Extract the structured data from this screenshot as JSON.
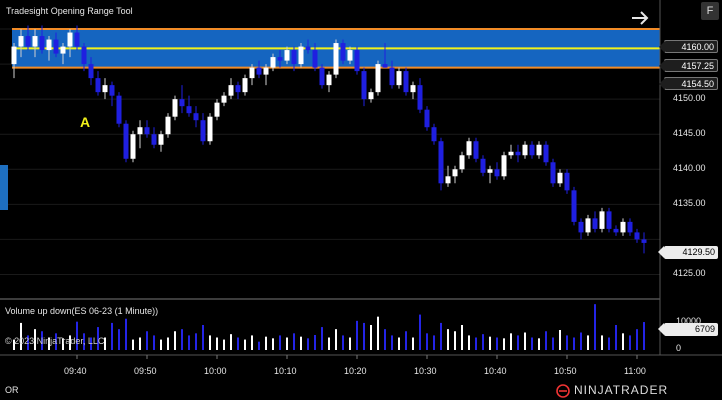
{
  "window": {
    "title": "Tradesight Opening Range Tool",
    "f_button": "F",
    "bottom_left": "OR"
  },
  "annotation": {
    "marker_label": "A"
  },
  "price_panel": {
    "y_ticks": [
      "4150.00",
      "4145.00",
      "4140.00",
      "4135.00",
      "4125.00"
    ],
    "tags": {
      "or_high": "4160.00",
      "or_mid": "4157.25",
      "or_low": "4154.50",
      "last_price": "4129.50"
    }
  },
  "volume_panel": {
    "title": "Volume up down(ES 06-23 (1 Minute))",
    "copyright": "© 2023 NinjaTrader, LLC",
    "y_ticks": [
      "10000",
      "0"
    ],
    "last_volume_tag": "6709"
  },
  "x_axis": {
    "ticks": [
      "09:40",
      "09:50",
      "10:00",
      "10:10",
      "10:20",
      "10:30",
      "10:40",
      "10:50",
      "11:00"
    ]
  },
  "logo": {
    "text": "NINJATRADER"
  },
  "colors": {
    "background": "#000000",
    "up_candle": "#ffffff",
    "down_candle": "#1f1fe0",
    "range_fill": "#1565c0",
    "range_border": "#f28c28",
    "mid_line": "#f2f21a",
    "volume_up": "#ffffff",
    "volume_down": "#2424e6"
  },
  "chart_data": {
    "type": "candlestick",
    "opening_range": {
      "high": 4160.0,
      "mid": 4157.25,
      "low": 4154.5
    },
    "x_ticks": [
      "09:40",
      "09:50",
      "10:00",
      "10:10",
      "10:20",
      "10:30",
      "10:40",
      "10:50",
      "11:00"
    ],
    "ylim_price": [
      4122.5,
      4163
    ],
    "ylim_volume": [
      0,
      12000
    ],
    "last_price": 4129.5,
    "last_volume": 6709,
    "ohlc": [
      [
        4155.0,
        4158.0,
        4153.0,
        4157.5
      ],
      [
        4157.5,
        4160.0,
        4156.0,
        4159.0
      ],
      [
        4159.0,
        4160.5,
        4157.0,
        4157.5
      ],
      [
        4157.5,
        4160.0,
        4156.0,
        4159.0
      ],
      [
        4159.0,
        4160.5,
        4156.5,
        4157.0
      ],
      [
        4157.0,
        4159.0,
        4155.5,
        4158.5
      ],
      [
        4158.5,
        4159.5,
        4156.0,
        4156.5
      ],
      [
        4156.5,
        4158.0,
        4155.0,
        4157.5
      ],
      [
        4157.5,
        4160.0,
        4156.0,
        4159.5
      ],
      [
        4159.5,
        4160.5,
        4157.0,
        4157.5
      ],
      [
        4157.5,
        4158.0,
        4154.0,
        4155.0
      ],
      [
        4155.0,
        4156.0,
        4152.0,
        4153.0
      ],
      [
        4153.0,
        4154.0,
        4150.5,
        4151.0
      ],
      [
        4151.0,
        4153.0,
        4150.0,
        4152.0
      ],
      [
        4152.0,
        4152.5,
        4149.0,
        4150.5
      ],
      [
        4150.5,
        4151.0,
        4146.0,
        4146.5
      ],
      [
        4146.5,
        4147.0,
        4141.0,
        4141.5
      ],
      [
        4141.5,
        4145.5,
        4141.0,
        4145.0
      ],
      [
        4145.0,
        4147.0,
        4143.0,
        4146.0
      ],
      [
        4146.0,
        4147.0,
        4144.5,
        4145.0
      ],
      [
        4145.0,
        4146.0,
        4143.0,
        4143.5
      ],
      [
        4143.5,
        4145.5,
        4142.5,
        4145.0
      ],
      [
        4145.0,
        4148.0,
        4144.5,
        4147.5
      ],
      [
        4147.5,
        4150.5,
        4147.0,
        4150.0
      ],
      [
        4150.0,
        4152.0,
        4148.0,
        4149.0
      ],
      [
        4149.0,
        4150.5,
        4147.5,
        4148.0
      ],
      [
        4148.0,
        4149.0,
        4146.0,
        4147.0
      ],
      [
        4147.0,
        4148.0,
        4143.5,
        4144.0
      ],
      [
        4144.0,
        4148.0,
        4143.5,
        4147.5
      ],
      [
        4147.5,
        4150.0,
        4147.0,
        4149.5
      ],
      [
        4149.5,
        4151.0,
        4149.0,
        4150.5
      ],
      [
        4150.5,
        4153.0,
        4150.0,
        4152.0
      ],
      [
        4152.0,
        4152.5,
        4150.0,
        4151.0
      ],
      [
        4151.0,
        4153.5,
        4150.5,
        4153.0
      ],
      [
        4153.0,
        4155.0,
        4152.0,
        4154.5
      ],
      [
        4154.5,
        4155.5,
        4153.0,
        4153.5
      ],
      [
        4153.5,
        4155.0,
        4152.0,
        4154.5
      ],
      [
        4154.5,
        4156.5,
        4154.0,
        4156.0
      ],
      [
        4156.0,
        4157.0,
        4154.5,
        4155.5
      ],
      [
        4155.5,
        4157.5,
        4155.0,
        4157.0
      ],
      [
        4157.0,
        4157.5,
        4154.0,
        4155.0
      ],
      [
        4155.0,
        4158.0,
        4154.5,
        4157.5
      ],
      [
        4157.5,
        4158.5,
        4156.5,
        4157.0
      ],
      [
        4157.0,
        4158.0,
        4154.0,
        4154.5
      ],
      [
        4154.5,
        4155.0,
        4151.5,
        4152.0
      ],
      [
        4152.0,
        4154.0,
        4151.0,
        4153.5
      ],
      [
        4153.5,
        4158.5,
        4153.0,
        4158.0
      ],
      [
        4158.0,
        4158.5,
        4155.0,
        4155.5
      ],
      [
        4155.5,
        4157.5,
        4155.0,
        4157.0
      ],
      [
        4157.0,
        4157.5,
        4153.5,
        4154.0
      ],
      [
        4154.0,
        4154.5,
        4149.0,
        4150.0
      ],
      [
        4150.0,
        4151.5,
        4149.5,
        4151.0
      ],
      [
        4151.0,
        4155.5,
        4150.5,
        4155.0
      ],
      [
        4155.0,
        4158.0,
        4154.5,
        4154.5
      ],
      [
        4154.5,
        4155.5,
        4151.5,
        4152.0
      ],
      [
        4152.0,
        4154.5,
        4151.5,
        4154.0
      ],
      [
        4154.0,
        4154.5,
        4150.5,
        4151.0
      ],
      [
        4151.0,
        4152.5,
        4150.0,
        4152.0
      ],
      [
        4152.0,
        4153.0,
        4148.0,
        4148.5
      ],
      [
        4148.5,
        4149.0,
        4145.5,
        4146.0
      ],
      [
        4146.0,
        4146.5,
        4143.5,
        4144.0
      ],
      [
        4144.0,
        4144.5,
        4137.0,
        4138.0
      ],
      [
        4138.0,
        4140.5,
        4137.5,
        4139.0
      ],
      [
        4139.0,
        4140.5,
        4138.0,
        4140.0
      ],
      [
        4140.0,
        4142.5,
        4139.5,
        4142.0
      ],
      [
        4142.0,
        4144.5,
        4141.5,
        4144.0
      ],
      [
        4144.0,
        4144.5,
        4141.0,
        4141.5
      ],
      [
        4141.5,
        4142.0,
        4139.0,
        4139.5
      ],
      [
        4139.5,
        4140.5,
        4138.0,
        4140.0
      ],
      [
        4140.0,
        4141.0,
        4138.5,
        4139.0
      ],
      [
        4139.0,
        4142.5,
        4138.5,
        4142.0
      ],
      [
        4142.0,
        4143.5,
        4141.5,
        4142.5
      ],
      [
        4142.5,
        4143.5,
        4141.0,
        4142.0
      ],
      [
        4142.0,
        4144.0,
        4141.5,
        4143.5
      ],
      [
        4143.5,
        4144.0,
        4141.5,
        4142.0
      ],
      [
        4142.0,
        4144.0,
        4141.5,
        4143.5
      ],
      [
        4143.5,
        4144.0,
        4140.5,
        4141.0
      ],
      [
        4141.0,
        4141.5,
        4137.5,
        4138.0
      ],
      [
        4138.0,
        4140.0,
        4137.5,
        4139.5
      ],
      [
        4139.5,
        4140.0,
        4136.5,
        4137.0
      ],
      [
        4137.0,
        4137.5,
        4132.0,
        4132.5
      ],
      [
        4132.5,
        4133.0,
        4130.0,
        4131.0
      ],
      [
        4131.0,
        4133.5,
        4130.5,
        4133.0
      ],
      [
        4133.0,
        4134.0,
        4131.0,
        4131.5
      ],
      [
        4131.5,
        4134.5,
        4131.0,
        4134.0
      ],
      [
        4134.0,
        4134.5,
        4131.0,
        4131.5
      ],
      [
        4131.5,
        4132.0,
        4130.5,
        4131.0
      ],
      [
        4131.0,
        4133.0,
        4130.5,
        4132.5
      ],
      [
        4132.5,
        4133.0,
        4130.5,
        4131.0
      ],
      [
        4131.0,
        4131.5,
        4129.5,
        4130.0
      ],
      [
        4130.0,
        4131.0,
        4128.0,
        4129.5
      ]
    ],
    "volume": [
      2500,
      6500,
      3500,
      5000,
      4500,
      3000,
      4000,
      2800,
      3500,
      6800,
      4000,
      3000,
      5500,
      3000,
      6500,
      5000,
      7500,
      2500,
      3000,
      4500,
      3500,
      2500,
      3000,
      4500,
      5000,
      3500,
      4000,
      6000,
      3500,
      3000,
      2500,
      3800,
      3000,
      2500,
      3500,
      2000,
      3200,
      2800,
      3500,
      3000,
      4000,
      3200,
      2800,
      3600,
      5500,
      3000,
      5000,
      3500,
      3000,
      7000,
      6500,
      6000,
      8000,
      5000,
      3500,
      3000,
      4500,
      3000,
      8500,
      4000,
      3500,
      6500,
      5000,
      4500,
      6000,
      3500,
      3000,
      3800,
      3200,
      3000,
      2800,
      4000,
      3500,
      4200,
      3000,
      2800,
      4500,
      3000,
      4800,
      3500,
      3000,
      4200,
      3500,
      11000,
      3500,
      3000,
      6000,
      4000,
      3500,
      5000,
      6709
    ]
  }
}
